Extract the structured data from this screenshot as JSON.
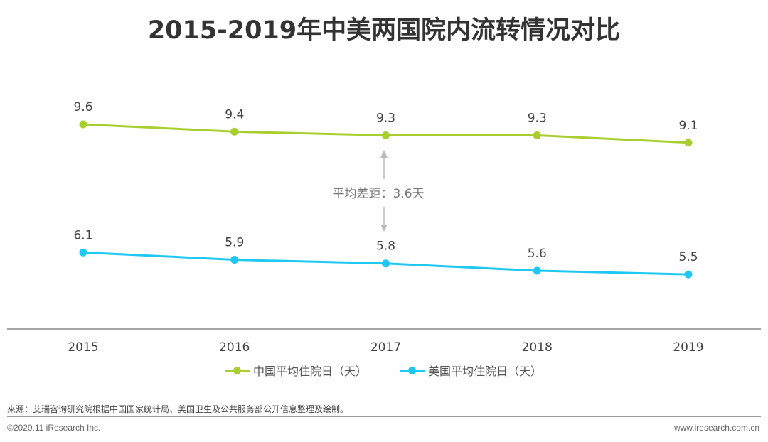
{
  "title": "2015-2019年中美两国院内流转情况对比",
  "chart_data": {
    "type": "line",
    "title": "2015-2019年中美两国院内流转情况对比",
    "categories": [
      "2015",
      "2016",
      "2017",
      "2018",
      "2019"
    ],
    "series": [
      {
        "name": "中国平均住院日（天）",
        "values": [
          9.6,
          9.4,
          9.3,
          9.3,
          9.1
        ],
        "color": "#a8cf2f"
      },
      {
        "name": "美国平均住院日（天）",
        "values": [
          6.1,
          5.9,
          5.8,
          5.6,
          5.5
        ],
        "color": "#1fc8f2"
      }
    ],
    "annotation": "平均差距：3.6天",
    "grid": false,
    "legend_position": "bottom",
    "xlabel": "",
    "ylabel": ""
  },
  "footer": {
    "source": "来源：艾瑞咨询研究院根据中国国家统计局、美国卫生及公共服务部公开信息整理及绘制。",
    "copyright": "©2020.11 iResearch Inc.",
    "website": "www.iresearch.com.cn"
  }
}
